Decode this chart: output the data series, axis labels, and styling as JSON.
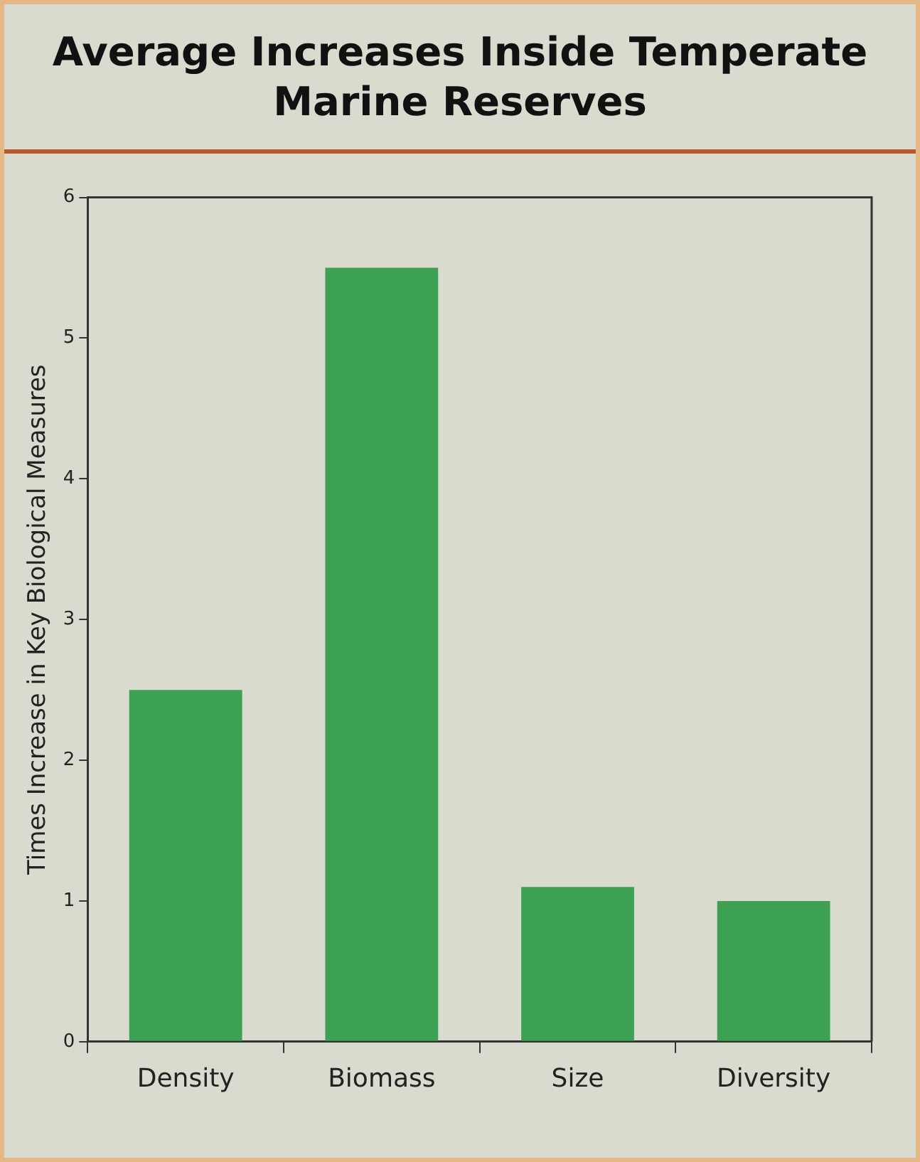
{
  "chart_data": {
    "type": "bar",
    "title": "Average Increases Inside Temperate Marine Reserves",
    "ylabel": "Times Increase in Key Biological Measures",
    "categories": [
      "Density",
      "Biomass",
      "Size",
      "Diversity"
    ],
    "values": [
      2.5,
      5.5,
      1.1,
      1.0
    ],
    "color": "#3da153",
    "ylim": [
      0,
      6
    ],
    "yticks": [
      0,
      1,
      2,
      3,
      4,
      5,
      6
    ],
    "grid": false,
    "legend": false
  }
}
